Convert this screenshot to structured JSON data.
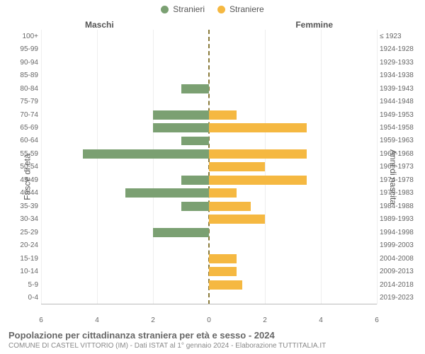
{
  "legend": {
    "male": "Stranieri",
    "female": "Straniere"
  },
  "section_labels": {
    "left": "Maschi",
    "right": "Femmine"
  },
  "y_titles": {
    "left": "Fasce di età",
    "right": "Anni di nascita"
  },
  "title": "Popolazione per cittadinanza straniera per età e sesso - 2024",
  "subtitle": "COMUNE DI CASTEL VITTORIO (IM) - Dati ISTAT al 1° gennaio 2024 - Elaborazione TUTTITALIA.IT",
  "colors": {
    "male": "#7ba072",
    "female": "#f5b841",
    "grid": "#eeeeee",
    "center_line": "#8a7a3a",
    "background": "#ffffff",
    "text": "#666666"
  },
  "x_axis": {
    "min": -6,
    "max": 6,
    "ticks": [
      6,
      4,
      2,
      0,
      0,
      2,
      4,
      6
    ]
  },
  "x_max": 6,
  "rows": [
    {
      "age": "100+",
      "birth": "≤ 1923",
      "m": 0,
      "f": 0
    },
    {
      "age": "95-99",
      "birth": "1924-1928",
      "m": 0,
      "f": 0
    },
    {
      "age": "90-94",
      "birth": "1929-1933",
      "m": 0,
      "f": 0
    },
    {
      "age": "85-89",
      "birth": "1934-1938",
      "m": 0,
      "f": 0
    },
    {
      "age": "80-84",
      "birth": "1939-1943",
      "m": 1,
      "f": 0
    },
    {
      "age": "75-79",
      "birth": "1944-1948",
      "m": 0,
      "f": 0
    },
    {
      "age": "70-74",
      "birth": "1949-1953",
      "m": 2,
      "f": 1
    },
    {
      "age": "65-69",
      "birth": "1954-1958",
      "m": 2,
      "f": 3.5
    },
    {
      "age": "60-64",
      "birth": "1959-1963",
      "m": 1,
      "f": 0
    },
    {
      "age": "55-59",
      "birth": "1964-1968",
      "m": 4.5,
      "f": 3.5
    },
    {
      "age": "50-54",
      "birth": "1969-1973",
      "m": 0,
      "f": 2
    },
    {
      "age": "45-49",
      "birth": "1974-1978",
      "m": 1,
      "f": 3.5
    },
    {
      "age": "40-44",
      "birth": "1979-1983",
      "m": 3,
      "f": 1
    },
    {
      "age": "35-39",
      "birth": "1984-1988",
      "m": 1,
      "f": 1.5
    },
    {
      "age": "30-34",
      "birth": "1989-1993",
      "m": 0,
      "f": 2
    },
    {
      "age": "25-29",
      "birth": "1994-1998",
      "m": 2,
      "f": 0
    },
    {
      "age": "20-24",
      "birth": "1999-2003",
      "m": 0,
      "f": 0
    },
    {
      "age": "15-19",
      "birth": "2004-2008",
      "m": 0,
      "f": 1
    },
    {
      "age": "10-14",
      "birth": "2009-2013",
      "m": 0,
      "f": 1
    },
    {
      "age": "5-9",
      "birth": "2014-2018",
      "m": 0,
      "f": 1.2
    },
    {
      "age": "0-4",
      "birth": "2019-2023",
      "m": 0,
      "f": 0
    }
  ]
}
